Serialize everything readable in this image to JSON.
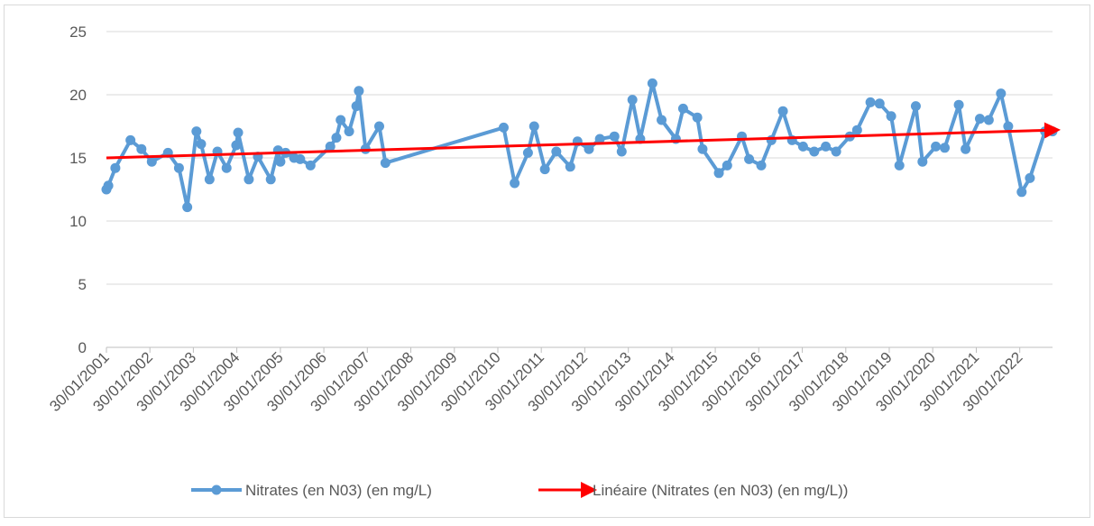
{
  "chart_data": {
    "type": "line",
    "ylim": [
      0,
      25
    ],
    "yticks": [
      0,
      5,
      10,
      15,
      20,
      25
    ],
    "grid": true,
    "xlim": [
      "2001-01-30",
      "2022-11-01"
    ],
    "xticks": [
      {
        "value": "2001-01-30",
        "label": "30/01/2001"
      },
      {
        "value": "2002-01-30",
        "label": "30/01/2002"
      },
      {
        "value": "2003-01-30",
        "label": "30/01/2003"
      },
      {
        "value": "2004-01-30",
        "label": "30/01/2004"
      },
      {
        "value": "2005-01-30",
        "label": "30/01/2005"
      },
      {
        "value": "2006-01-30",
        "label": "30/01/2006"
      },
      {
        "value": "2007-01-30",
        "label": "30/01/2007"
      },
      {
        "value": "2008-01-30",
        "label": "30/01/2008"
      },
      {
        "value": "2009-01-30",
        "label": "30/01/2009"
      },
      {
        "value": "2010-01-30",
        "label": "30/01/2010"
      },
      {
        "value": "2011-01-30",
        "label": "30/01/2011"
      },
      {
        "value": "2012-01-30",
        "label": "30/01/2012"
      },
      {
        "value": "2013-01-30",
        "label": "30/01/2013"
      },
      {
        "value": "2014-01-30",
        "label": "30/01/2014"
      },
      {
        "value": "2015-01-30",
        "label": "30/01/2015"
      },
      {
        "value": "2016-01-30",
        "label": "30/01/2016"
      },
      {
        "value": "2017-01-30",
        "label": "30/01/2017"
      },
      {
        "value": "2018-01-30",
        "label": "30/01/2018"
      },
      {
        "value": "2019-01-30",
        "label": "30/01/2019"
      },
      {
        "value": "2020-01-30",
        "label": "30/01/2020"
      },
      {
        "value": "2021-01-30",
        "label": "30/01/2021"
      },
      {
        "value": "2022-01-30",
        "label": "30/01/2022"
      }
    ],
    "series": [
      {
        "name": "Nitrates (en N03) (en mg/L)",
        "color": "#5b9bd5",
        "marker": "circle",
        "x": [
          "2001-01-30",
          "2001-02-15",
          "2001-04-15",
          "2001-08-20",
          "2001-11-20",
          "2002-02-15",
          "2002-07-01",
          "2002-10-01",
          "2002-12-10",
          "2003-02-25",
          "2003-04-05",
          "2003-06-15",
          "2003-08-20",
          "2003-11-05",
          "2004-01-25",
          "2004-02-10",
          "2004-05-10",
          "2004-07-25",
          "2004-11-10",
          "2005-01-10",
          "2005-01-30",
          "2005-03-15",
          "2005-05-25",
          "2005-07-15",
          "2005-10-10",
          "2006-03-25",
          "2006-05-15",
          "2006-06-20",
          "2006-08-30",
          "2006-10-30",
          "2006-11-20",
          "2007-01-15",
          "2007-05-10",
          "2007-07-01",
          "2010-03-20",
          "2010-06-20",
          "2010-10-10",
          "2010-12-01",
          "2011-03-01",
          "2011-06-05",
          "2011-09-30",
          "2011-11-30",
          "2012-03-05",
          "2012-06-05",
          "2012-10-05",
          "2012-12-05",
          "2013-03-05",
          "2013-05-10",
          "2013-08-20",
          "2013-11-05",
          "2014-03-05",
          "2014-05-05",
          "2014-09-01",
          "2014-10-15",
          "2015-03-01",
          "2015-05-10",
          "2015-09-10",
          "2015-11-10",
          "2016-02-20",
          "2016-05-15",
          "2016-08-20",
          "2016-11-05",
          "2017-02-05",
          "2017-05-10",
          "2017-08-15",
          "2017-11-10",
          "2018-03-05",
          "2018-05-05",
          "2018-08-25",
          "2018-11-10",
          "2019-02-15",
          "2019-04-25",
          "2019-09-10",
          "2019-11-05",
          "2020-02-25",
          "2020-05-10",
          "2020-09-05",
          "2020-11-01",
          "2021-03-01",
          "2021-05-15",
          "2021-08-25",
          "2021-10-25",
          "2022-02-15",
          "2022-04-25",
          "2022-08-30",
          "2022-11-01"
        ],
        "values": [
          12.5,
          12.8,
          14.2,
          16.4,
          15.7,
          14.7,
          15.4,
          14.2,
          11.1,
          17.1,
          16.1,
          13.3,
          15.5,
          14.2,
          16.0,
          17.0,
          13.3,
          15.1,
          13.3,
          15.6,
          14.7,
          15.4,
          15.0,
          14.9,
          14.4,
          15.9,
          16.6,
          18.0,
          17.1,
          19.1,
          20.3,
          15.7,
          17.5,
          14.6,
          17.4,
          13.0,
          15.4,
          17.5,
          14.1,
          15.5,
          14.3,
          16.3,
          15.7,
          16.5,
          16.7,
          15.5,
          19.6,
          16.5,
          20.9,
          18.0,
          16.5,
          18.9,
          18.2,
          15.7,
          13.8,
          14.4,
          16.7,
          14.9,
          14.4,
          16.4,
          18.7,
          16.4,
          15.9,
          15.5,
          15.9,
          15.5,
          16.7,
          17.2,
          19.4,
          19.3,
          18.3,
          14.4,
          19.1,
          14.7,
          15.9,
          15.8,
          19.2,
          15.7,
          18.1,
          18.0,
          20.1,
          17.5,
          12.3,
          13.4,
          17.1,
          17.1
        ]
      },
      {
        "name": "Linéaire (Nitrates (en N03) (en mg/L))",
        "color": "#ff0000",
        "marker": "arrow",
        "x": [
          "2001-01-30",
          "2022-11-01"
        ],
        "values": [
          15.0,
          17.2
        ]
      }
    ]
  }
}
